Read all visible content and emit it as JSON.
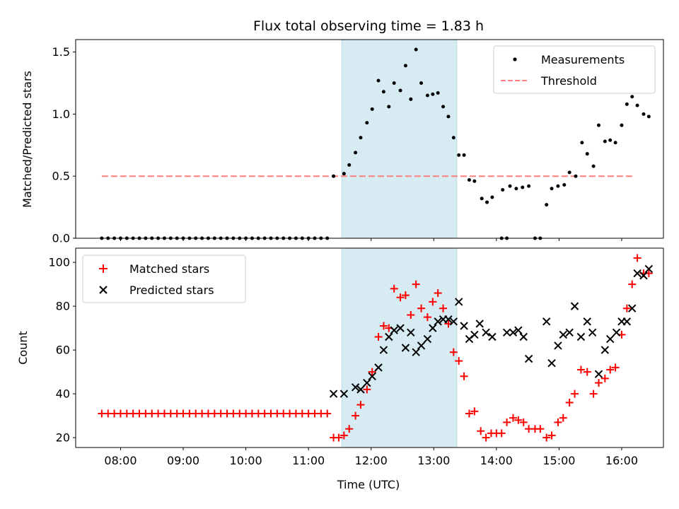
{
  "chart_data": [
    {
      "type": "scatter",
      "title": "Flux total observing time = 1.83 h",
      "xlabel": "",
      "ylabel": "Matched/Predicted stars",
      "xlim": [
        "07:17",
        "16:40"
      ],
      "ylim": [
        0,
        1.6
      ],
      "yticks": [
        0.0,
        0.5,
        1.0,
        1.5
      ],
      "ytick_labels": [
        "0.0",
        "0.5",
        "1.0",
        "1.5"
      ],
      "shaded_span": [
        "11:32",
        "13:22"
      ],
      "shaded_color": "#add8e6",
      "legend_position": "upper right",
      "legend": [
        {
          "label": "Measurements",
          "marker": "dot",
          "color": "#000000"
        },
        {
          "label": "Threshold",
          "marker": "dashed-line",
          "color": "#ff7f7f"
        }
      ],
      "threshold": {
        "value": 0.5,
        "from": "07:42",
        "to": "16:12"
      },
      "series": [
        {
          "name": "Measurements",
          "color": "#000000",
          "points": [
            [
              "07:42",
              0
            ],
            [
              "07:48",
              0
            ],
            [
              "07:54",
              0
            ],
            [
              "08:00",
              0
            ],
            [
              "08:06",
              0
            ],
            [
              "08:12",
              0
            ],
            [
              "08:18",
              0
            ],
            [
              "08:24",
              0
            ],
            [
              "08:30",
              0
            ],
            [
              "08:36",
              0
            ],
            [
              "08:42",
              0
            ],
            [
              "08:48",
              0
            ],
            [
              "08:54",
              0
            ],
            [
              "09:00",
              0
            ],
            [
              "09:06",
              0
            ],
            [
              "09:12",
              0
            ],
            [
              "09:18",
              0
            ],
            [
              "09:24",
              0
            ],
            [
              "09:30",
              0
            ],
            [
              "09:36",
              0
            ],
            [
              "09:42",
              0
            ],
            [
              "09:48",
              0
            ],
            [
              "09:54",
              0
            ],
            [
              "10:00",
              0
            ],
            [
              "10:06",
              0
            ],
            [
              "10:12",
              0
            ],
            [
              "10:18",
              0
            ],
            [
              "10:24",
              0
            ],
            [
              "10:30",
              0
            ],
            [
              "10:36",
              0
            ],
            [
              "10:42",
              0
            ],
            [
              "10:48",
              0
            ],
            [
              "10:54",
              0
            ],
            [
              "11:00",
              0
            ],
            [
              "11:06",
              0
            ],
            [
              "11:12",
              0
            ],
            [
              "11:18",
              0
            ],
            [
              "11:24",
              0.5
            ],
            [
              "11:34",
              0.52
            ],
            [
              "11:39",
              0.59
            ],
            [
              "11:45",
              0.69
            ],
            [
              "11:50",
              0.81
            ],
            [
              "11:56",
              0.93
            ],
            [
              "12:01",
              1.04
            ],
            [
              "12:07",
              1.27
            ],
            [
              "12:12",
              1.18
            ],
            [
              "12:17",
              1.06
            ],
            [
              "12:22",
              1.25
            ],
            [
              "12:28",
              1.19
            ],
            [
              "12:33",
              1.39
            ],
            [
              "12:38",
              1.12
            ],
            [
              "12:43",
              1.52
            ],
            [
              "12:48",
              1.25
            ],
            [
              "12:54",
              1.15
            ],
            [
              "12:59",
              1.16
            ],
            [
              "13:04",
              1.17
            ],
            [
              "13:09",
              1.06
            ],
            [
              "13:14",
              0.98
            ],
            [
              "13:19",
              0.81
            ],
            [
              "13:24",
              0.67
            ],
            [
              "13:29",
              0.67
            ],
            [
              "13:34",
              0.47
            ],
            [
              "13:39",
              0.46
            ],
            [
              "13:46",
              0.32
            ],
            [
              "13:51",
              0.29
            ],
            [
              "13:56",
              0.33
            ],
            [
              "14:05",
              0
            ],
            [
              "14:10",
              0
            ],
            [
              "14:06",
              0.39
            ],
            [
              "14:13",
              0.42
            ],
            [
              "14:19",
              0.4
            ],
            [
              "14:25",
              0.41
            ],
            [
              "14:31",
              0.42
            ],
            [
              "14:37",
              0
            ],
            [
              "14:42",
              0
            ],
            [
              "14:48",
              0.27
            ],
            [
              "14:53",
              0.4
            ],
            [
              "14:59",
              0.42
            ],
            [
              "15:05",
              0.43
            ],
            [
              "15:10",
              0.53
            ],
            [
              "15:16",
              0.5
            ],
            [
              "15:22",
              0.77
            ],
            [
              "15:27",
              0.68
            ],
            [
              "15:33",
              0.58
            ],
            [
              "15:38",
              0.91
            ],
            [
              "15:44",
              0.78
            ],
            [
              "15:49",
              0.79
            ],
            [
              "15:54",
              0.77
            ],
            [
              "16:00",
              0.91
            ],
            [
              "16:05",
              1.08
            ],
            [
              "16:10",
              1.14
            ],
            [
              "16:15",
              1.07
            ],
            [
              "16:21",
              1.0
            ],
            [
              "16:26",
              0.98
            ]
          ]
        }
      ]
    },
    {
      "type": "scatter",
      "title": "",
      "xlabel": "Time (UTC)",
      "ylabel": "Count",
      "xlim": [
        "07:17",
        "16:40"
      ],
      "ylim": [
        15.5,
        106.5
      ],
      "yticks": [
        20,
        40,
        60,
        80,
        100
      ],
      "ytick_labels": [
        "20",
        "40",
        "60",
        "80",
        "100"
      ],
      "xticks": [
        "08:00",
        "09:00",
        "10:00",
        "11:00",
        "12:00",
        "13:00",
        "14:00",
        "15:00",
        "16:00"
      ],
      "shaded_span": [
        "11:32",
        "13:22"
      ],
      "shaded_color": "#add8e6",
      "legend_position": "upper left",
      "legend": [
        {
          "label": "Matched stars",
          "marker": "plus",
          "color": "#ff0000"
        },
        {
          "label": "Predicted stars",
          "marker": "x",
          "color": "#000000"
        }
      ],
      "series": [
        {
          "name": "Matched stars",
          "marker": "plus",
          "color": "#ff0000",
          "points": [
            [
              "07:42",
              31
            ],
            [
              "07:48",
              31
            ],
            [
              "07:54",
              31
            ],
            [
              "08:00",
              31
            ],
            [
              "08:06",
              31
            ],
            [
              "08:12",
              31
            ],
            [
              "08:18",
              31
            ],
            [
              "08:24",
              31
            ],
            [
              "08:30",
              31
            ],
            [
              "08:36",
              31
            ],
            [
              "08:42",
              31
            ],
            [
              "08:48",
              31
            ],
            [
              "08:54",
              31
            ],
            [
              "09:00",
              31
            ],
            [
              "09:06",
              31
            ],
            [
              "09:12",
              31
            ],
            [
              "09:18",
              31
            ],
            [
              "09:24",
              31
            ],
            [
              "09:30",
              31
            ],
            [
              "09:36",
              31
            ],
            [
              "09:42",
              31
            ],
            [
              "09:48",
              31
            ],
            [
              "09:54",
              31
            ],
            [
              "10:00",
              31
            ],
            [
              "10:06",
              31
            ],
            [
              "10:12",
              31
            ],
            [
              "10:18",
              31
            ],
            [
              "10:24",
              31
            ],
            [
              "10:30",
              31
            ],
            [
              "10:36",
              31
            ],
            [
              "10:42",
              31
            ],
            [
              "10:48",
              31
            ],
            [
              "10:54",
              31
            ],
            [
              "11:00",
              31
            ],
            [
              "11:06",
              31
            ],
            [
              "11:12",
              31
            ],
            [
              "11:18",
              31
            ],
            [
              "11:24",
              20
            ],
            [
              "11:29",
              20
            ],
            [
              "11:34",
              21
            ],
            [
              "11:39",
              24
            ],
            [
              "11:45",
              30
            ],
            [
              "11:50",
              35
            ],
            [
              "11:56",
              42
            ],
            [
              "12:01",
              50
            ],
            [
              "12:07",
              66
            ],
            [
              "12:12",
              71
            ],
            [
              "12:17",
              70
            ],
            [
              "12:22",
              88
            ],
            [
              "12:28",
              84
            ],
            [
              "12:33",
              85
            ],
            [
              "12:38",
              76
            ],
            [
              "12:43",
              90
            ],
            [
              "12:48",
              79
            ],
            [
              "12:54",
              75
            ],
            [
              "12:59",
              82
            ],
            [
              "13:04",
              86
            ],
            [
              "13:09",
              79
            ],
            [
              "13:14",
              72
            ],
            [
              "13:19",
              59
            ],
            [
              "13:24",
              55
            ],
            [
              "13:29",
              48
            ],
            [
              "13:34",
              31
            ],
            [
              "13:39",
              32
            ],
            [
              "13:45",
              23
            ],
            [
              "13:50",
              20
            ],
            [
              "13:55",
              22
            ],
            [
              "14:00",
              22
            ],
            [
              "14:05",
              22
            ],
            [
              "14:10",
              27
            ],
            [
              "14:16",
              29
            ],
            [
              "14:21",
              28
            ],
            [
              "14:26",
              27
            ],
            [
              "14:31",
              24
            ],
            [
              "14:37",
              24
            ],
            [
              "14:42",
              24
            ],
            [
              "14:48",
              20
            ],
            [
              "14:53",
              21
            ],
            [
              "14:59",
              27
            ],
            [
              "15:04",
              29
            ],
            [
              "15:10",
              36
            ],
            [
              "15:15",
              40
            ],
            [
              "15:21",
              51
            ],
            [
              "15:27",
              50
            ],
            [
              "15:33",
              40
            ],
            [
              "15:38",
              45
            ],
            [
              "15:44",
              47
            ],
            [
              "15:49",
              51
            ],
            [
              "15:54",
              52
            ],
            [
              "16:00",
              67
            ],
            [
              "16:05",
              79
            ],
            [
              "16:10",
              90
            ],
            [
              "16:15",
              102
            ],
            [
              "16:21",
              95
            ],
            [
              "16:26",
              95
            ]
          ]
        },
        {
          "name": "Predicted stars",
          "marker": "x",
          "color": "#000000",
          "points": [
            [
              "11:24",
              40
            ],
            [
              "11:34",
              40
            ],
            [
              "11:45",
              43
            ],
            [
              "11:50",
              42
            ],
            [
              "11:56",
              45
            ],
            [
              "12:01",
              48
            ],
            [
              "12:07",
              52
            ],
            [
              "12:12",
              60
            ],
            [
              "12:17",
              66
            ],
            [
              "12:22",
              69
            ],
            [
              "12:28",
              70
            ],
            [
              "12:33",
              61
            ],
            [
              "12:38",
              68
            ],
            [
              "12:43",
              59
            ],
            [
              "12:48",
              62
            ],
            [
              "12:54",
              65
            ],
            [
              "12:59",
              70
            ],
            [
              "13:04",
              73
            ],
            [
              "13:09",
              74
            ],
            [
              "13:14",
              74
            ],
            [
              "13:19",
              73
            ],
            [
              "13:24",
              82
            ],
            [
              "13:29",
              71
            ],
            [
              "13:34",
              65
            ],
            [
              "13:39",
              67
            ],
            [
              "13:44",
              72
            ],
            [
              "13:50",
              68
            ],
            [
              "13:56",
              66
            ],
            [
              "14:10",
              68
            ],
            [
              "14:16",
              68
            ],
            [
              "14:21",
              69
            ],
            [
              "14:26",
              66
            ],
            [
              "14:31",
              56
            ],
            [
              "14:48",
              73
            ],
            [
              "14:53",
              54
            ],
            [
              "14:59",
              62
            ],
            [
              "15:04",
              67
            ],
            [
              "15:10",
              68
            ],
            [
              "15:15",
              80
            ],
            [
              "15:21",
              66
            ],
            [
              "15:27",
              73
            ],
            [
              "15:32",
              68
            ],
            [
              "15:38",
              49
            ],
            [
              "15:44",
              60
            ],
            [
              "15:49",
              65
            ],
            [
              "15:55",
              68
            ],
            [
              "16:00",
              73
            ],
            [
              "16:05",
              73
            ],
            [
              "16:10",
              79
            ],
            [
              "16:15",
              95
            ],
            [
              "16:21",
              94
            ],
            [
              "16:26",
              97
            ]
          ]
        }
      ]
    }
  ]
}
